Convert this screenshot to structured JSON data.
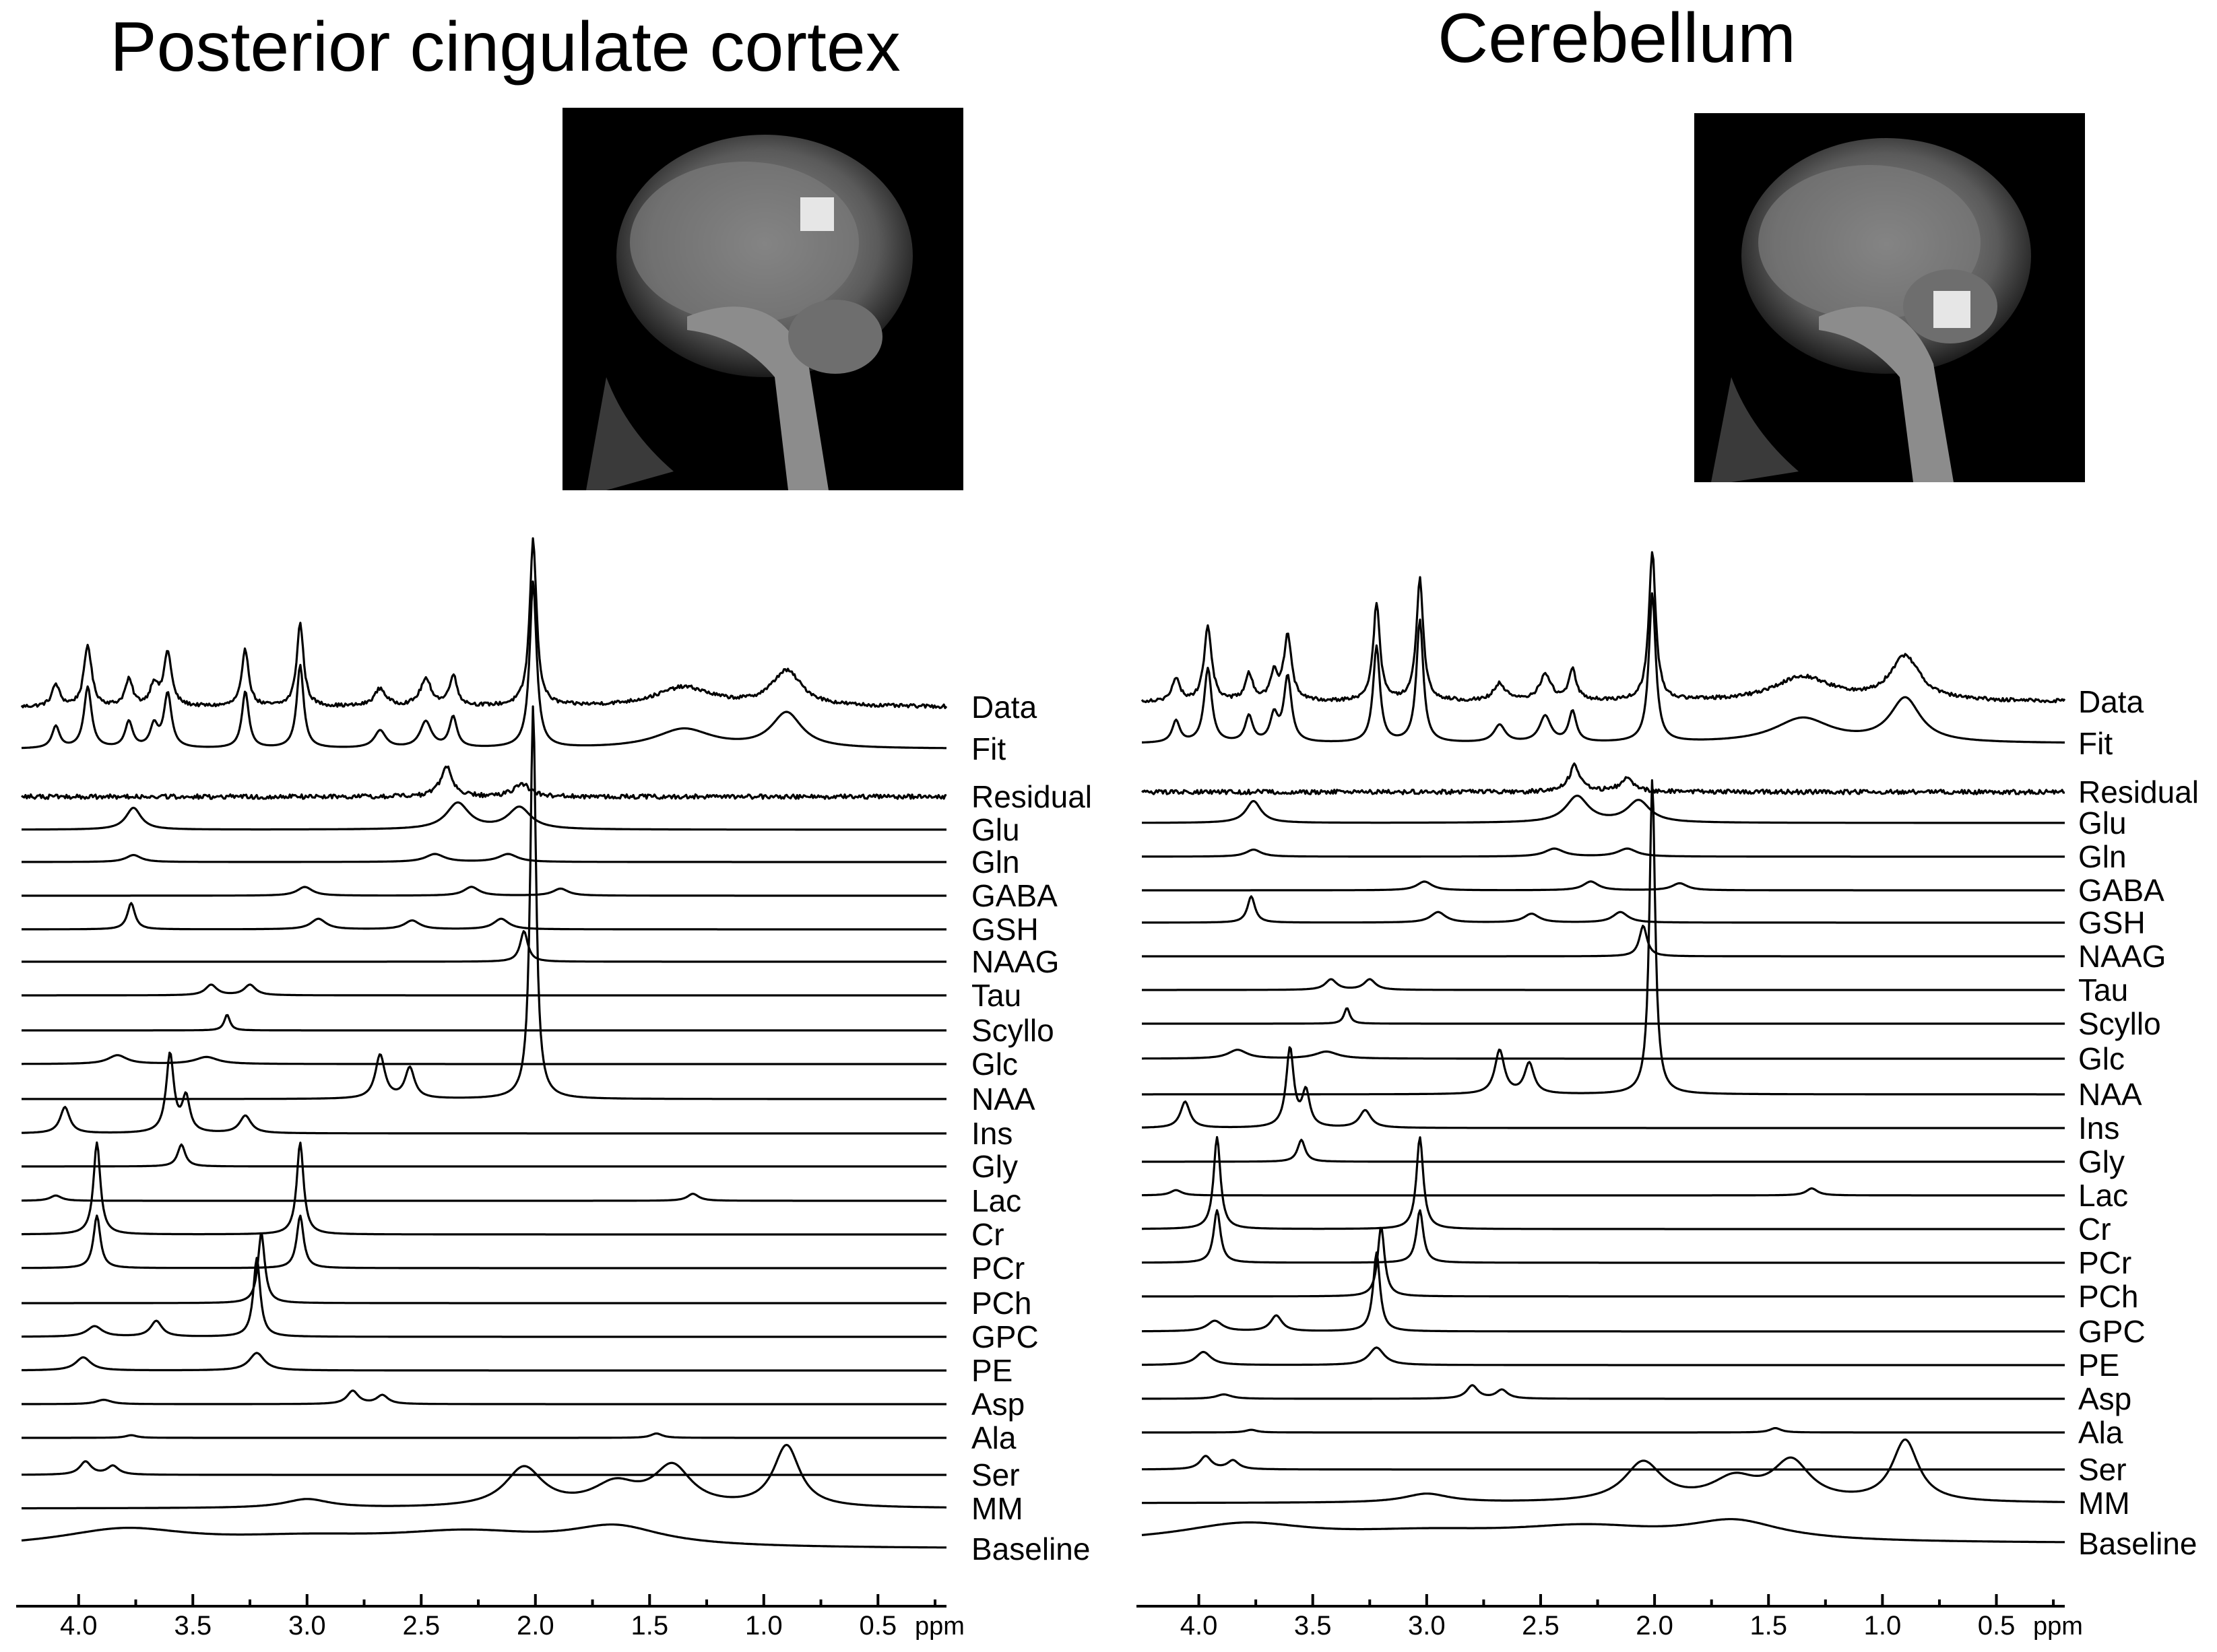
{
  "chart_data": [
    {
      "type": "line",
      "title": "Posterior cingulate cortex",
      "xlabel": "ppm",
      "x_axis": {
        "reversed": true,
        "range_ppm": [
          4.25,
          0.2
        ],
        "ticks": [
          "4.0",
          "3.5",
          "3.0",
          "2.5",
          "2.0",
          "1.5",
          "1.0",
          "0.5"
        ],
        "unit": "ppm"
      },
      "inset": "sagittal-mri-voxel-posterior-cingulate",
      "traces": [
        {
          "name": "Data",
          "peaks": [
            [
              4.1,
              0.25,
              0.02
            ],
            [
              3.96,
              0.7,
              0.02
            ],
            [
              3.78,
              0.3,
              0.02
            ],
            [
              3.67,
              0.25,
              0.02
            ],
            [
              3.61,
              0.62,
              0.02
            ],
            [
              3.27,
              0.65,
              0.018
            ],
            [
              3.03,
              0.95,
              0.018
            ],
            [
              2.68,
              0.2,
              0.03
            ],
            [
              2.48,
              0.3,
              0.03
            ],
            [
              2.36,
              0.35,
              0.02
            ],
            [
              2.01,
              1.9,
              0.018
            ],
            [
              1.35,
              0.22,
              0.15
            ],
            [
              0.9,
              0.4,
              0.08
            ]
          ],
          "noise": 0.04
        },
        {
          "name": "Fit",
          "peaks": [
            [
              4.1,
              0.25,
              0.02
            ],
            [
              3.96,
              0.7,
              0.02
            ],
            [
              3.78,
              0.3,
              0.02
            ],
            [
              3.67,
              0.25,
              0.02
            ],
            [
              3.61,
              0.62,
              0.02
            ],
            [
              3.27,
              0.65,
              0.018
            ],
            [
              3.03,
              0.95,
              0.018
            ],
            [
              2.68,
              0.2,
              0.03
            ],
            [
              2.48,
              0.3,
              0.03
            ],
            [
              2.36,
              0.35,
              0.02
            ],
            [
              2.01,
              1.9,
              0.018
            ],
            [
              1.35,
              0.22,
              0.15
            ],
            [
              0.9,
              0.4,
              0.08
            ]
          ],
          "noise": 0
        },
        {
          "name": "Residual",
          "peaks": [
            [
              2.39,
              0.35,
              0.03
            ],
            [
              2.06,
              0.15,
              0.04
            ]
          ],
          "noise": 0.05
        },
        {
          "name": "Glu",
          "peaks": [
            [
              3.76,
              0.25,
              0.04
            ],
            [
              2.34,
              0.3,
              0.06
            ],
            [
              2.07,
              0.25,
              0.06
            ]
          ]
        },
        {
          "name": "Gln",
          "peaks": [
            [
              3.76,
              0.08,
              0.04
            ],
            [
              2.44,
              0.09,
              0.05
            ],
            [
              2.12,
              0.09,
              0.05
            ]
          ]
        },
        {
          "name": "GABA",
          "peaks": [
            [
              3.01,
              0.1,
              0.04
            ],
            [
              2.28,
              0.1,
              0.04
            ],
            [
              1.89,
              0.08,
              0.04
            ]
          ]
        },
        {
          "name": "GSH",
          "peaks": [
            [
              3.77,
              0.3,
              0.02
            ],
            [
              2.95,
              0.12,
              0.04
            ],
            [
              2.54,
              0.1,
              0.04
            ],
            [
              2.15,
              0.12,
              0.04
            ]
          ]
        },
        {
          "name": "NAAG",
          "peaks": [
            [
              2.05,
              0.35,
              0.02
            ]
          ]
        },
        {
          "name": "Tau",
          "peaks": [
            [
              3.42,
              0.12,
              0.03
            ],
            [
              3.25,
              0.12,
              0.03
            ]
          ]
        },
        {
          "name": "Scyllo",
          "peaks": [
            [
              3.35,
              0.18,
              0.015
            ]
          ]
        },
        {
          "name": "Glc",
          "peaks": [
            [
              3.83,
              0.1,
              0.05
            ],
            [
              3.44,
              0.08,
              0.06
            ]
          ]
        },
        {
          "name": "NAA",
          "peaks": [
            [
              2.01,
              4.5,
              0.015
            ],
            [
              2.68,
              0.5,
              0.025
            ],
            [
              2.55,
              0.35,
              0.025
            ]
          ]
        },
        {
          "name": "Ins",
          "peaks": [
            [
              4.06,
              0.3,
              0.025
            ],
            [
              3.6,
              0.9,
              0.02
            ],
            [
              3.53,
              0.4,
              0.02
            ],
            [
              3.27,
              0.2,
              0.03
            ]
          ]
        },
        {
          "name": "Gly",
          "peaks": [
            [
              3.55,
              0.25,
              0.02
            ]
          ]
        },
        {
          "name": "Lac",
          "peaks": [
            [
              4.1,
              0.06,
              0.03
            ],
            [
              1.31,
              0.08,
              0.03
            ]
          ]
        },
        {
          "name": "Cr",
          "peaks": [
            [
              3.92,
              1.05,
              0.018
            ],
            [
              3.03,
              1.05,
              0.018
            ]
          ]
        },
        {
          "name": "PCr",
          "peaks": [
            [
              3.92,
              0.6,
              0.018
            ],
            [
              3.03,
              0.6,
              0.018
            ]
          ]
        },
        {
          "name": "PCh",
          "peaks": [
            [
              3.2,
              0.8,
              0.018
            ]
          ]
        },
        {
          "name": "GPC",
          "peaks": [
            [
              3.93,
              0.12,
              0.04
            ],
            [
              3.66,
              0.18,
              0.03
            ],
            [
              3.22,
              0.9,
              0.018
            ]
          ]
        },
        {
          "name": "PE",
          "peaks": [
            [
              3.98,
              0.15,
              0.04
            ],
            [
              3.22,
              0.2,
              0.04
            ]
          ]
        },
        {
          "name": "Asp",
          "peaks": [
            [
              3.89,
              0.05,
              0.04
            ],
            [
              2.8,
              0.15,
              0.03
            ],
            [
              2.67,
              0.1,
              0.03
            ]
          ]
        },
        {
          "name": "Ala",
          "peaks": [
            [
              3.77,
              0.03,
              0.03
            ],
            [
              1.47,
              0.05,
              0.03
            ]
          ]
        },
        {
          "name": "Ser",
          "peaks": [
            [
              3.97,
              0.15,
              0.03
            ],
            [
              3.85,
              0.1,
              0.03
            ]
          ]
        },
        {
          "name": "MM",
          "peaks": [
            [
              3.0,
              0.1,
              0.12
            ],
            [
              2.05,
              0.45,
              0.1
            ],
            [
              1.4,
              0.45,
              0.1
            ],
            [
              0.9,
              0.7,
              0.07
            ],
            [
              1.65,
              0.25,
              0.12
            ]
          ]
        },
        {
          "name": "Baseline",
          "peaks": [
            [
              3.8,
              0.2,
              0.35
            ],
            [
              3.0,
              0.1,
              0.5
            ],
            [
              2.3,
              0.15,
              0.4
            ],
            [
              1.65,
              0.22,
              0.25
            ]
          ]
        }
      ]
    },
    {
      "type": "line",
      "title": "Cerebellum",
      "xlabel": "ppm",
      "x_axis": {
        "reversed": true,
        "range_ppm": [
          4.25,
          0.2
        ],
        "ticks": [
          "4.0",
          "3.5",
          "3.0",
          "2.5",
          "2.0",
          "1.5",
          "1.0",
          "0.5"
        ],
        "unit": "ppm"
      },
      "inset": "sagittal-mri-voxel-cerebellum",
      "traces": [
        {
          "name": "Data",
          "peaks": [
            [
              4.1,
              0.25,
              0.02
            ],
            [
              3.96,
              0.85,
              0.02
            ],
            [
              3.78,
              0.3,
              0.02
            ],
            [
              3.67,
              0.3,
              0.02
            ],
            [
              3.61,
              0.75,
              0.02
            ],
            [
              3.22,
              1.1,
              0.018
            ],
            [
              3.03,
              1.4,
              0.018
            ],
            [
              2.68,
              0.2,
              0.03
            ],
            [
              2.48,
              0.3,
              0.03
            ],
            [
              2.36,
              0.35,
              0.02
            ],
            [
              2.01,
              1.7,
              0.018
            ],
            [
              1.35,
              0.28,
              0.15
            ],
            [
              0.9,
              0.5,
              0.08
            ]
          ],
          "noise": 0.04
        },
        {
          "name": "Fit",
          "peaks": [
            [
              4.1,
              0.25,
              0.02
            ],
            [
              3.96,
              0.85,
              0.02
            ],
            [
              3.78,
              0.3,
              0.02
            ],
            [
              3.67,
              0.3,
              0.02
            ],
            [
              3.61,
              0.75,
              0.02
            ],
            [
              3.22,
              1.1,
              0.018
            ],
            [
              3.03,
              1.4,
              0.018
            ],
            [
              2.68,
              0.2,
              0.03
            ],
            [
              2.48,
              0.3,
              0.03
            ],
            [
              2.36,
              0.35,
              0.02
            ],
            [
              2.01,
              1.7,
              0.018
            ],
            [
              1.35,
              0.28,
              0.15
            ],
            [
              0.9,
              0.5,
              0.08
            ]
          ],
          "noise": 0
        },
        {
          "name": "Residual",
          "peaks": [
            [
              2.35,
              0.3,
              0.03
            ],
            [
              2.12,
              0.15,
              0.04
            ]
          ],
          "noise": 0.05
        },
        {
          "name": "Glu",
          "peaks": [
            [
              3.76,
              0.25,
              0.04
            ],
            [
              2.34,
              0.3,
              0.06
            ],
            [
              2.07,
              0.25,
              0.06
            ]
          ]
        },
        {
          "name": "Gln",
          "peaks": [
            [
              3.76,
              0.08,
              0.04
            ],
            [
              2.44,
              0.09,
              0.05
            ],
            [
              2.12,
              0.09,
              0.05
            ]
          ]
        },
        {
          "name": "GABA",
          "peaks": [
            [
              3.01,
              0.1,
              0.04
            ],
            [
              2.28,
              0.1,
              0.04
            ],
            [
              1.89,
              0.08,
              0.04
            ]
          ]
        },
        {
          "name": "GSH",
          "peaks": [
            [
              3.77,
              0.3,
              0.02
            ],
            [
              2.95,
              0.12,
              0.04
            ],
            [
              2.54,
              0.1,
              0.04
            ],
            [
              2.15,
              0.12,
              0.04
            ]
          ]
        },
        {
          "name": "NAAG",
          "peaks": [
            [
              2.05,
              0.35,
              0.02
            ]
          ]
        },
        {
          "name": "Tau",
          "peaks": [
            [
              3.42,
              0.12,
              0.03
            ],
            [
              3.25,
              0.12,
              0.03
            ]
          ]
        },
        {
          "name": "Scyllo",
          "peaks": [
            [
              3.35,
              0.18,
              0.015
            ]
          ]
        },
        {
          "name": "Glc",
          "peaks": [
            [
              3.83,
              0.1,
              0.05
            ],
            [
              3.44,
              0.08,
              0.06
            ]
          ]
        },
        {
          "name": "NAA",
          "peaks": [
            [
              2.01,
              3.6,
              0.015
            ],
            [
              2.68,
              0.5,
              0.025
            ],
            [
              2.55,
              0.35,
              0.025
            ]
          ]
        },
        {
          "name": "Ins",
          "peaks": [
            [
              4.06,
              0.3,
              0.025
            ],
            [
              3.6,
              0.9,
              0.02
            ],
            [
              3.53,
              0.4,
              0.02
            ],
            [
              3.27,
              0.2,
              0.03
            ]
          ]
        },
        {
          "name": "Gly",
          "peaks": [
            [
              3.55,
              0.25,
              0.02
            ]
          ]
        },
        {
          "name": "Lac",
          "peaks": [
            [
              4.1,
              0.06,
              0.03
            ],
            [
              1.31,
              0.08,
              0.03
            ]
          ]
        },
        {
          "name": "Cr",
          "peaks": [
            [
              3.92,
              1.05,
              0.018
            ],
            [
              3.03,
              1.05,
              0.018
            ]
          ]
        },
        {
          "name": "PCr",
          "peaks": [
            [
              3.92,
              0.6,
              0.018
            ],
            [
              3.03,
              0.6,
              0.018
            ]
          ]
        },
        {
          "name": "PCh",
          "peaks": [
            [
              3.2,
              0.8,
              0.018
            ]
          ]
        },
        {
          "name": "GPC",
          "peaks": [
            [
              3.93,
              0.12,
              0.04
            ],
            [
              3.66,
              0.18,
              0.03
            ],
            [
              3.22,
              0.9,
              0.018
            ]
          ]
        },
        {
          "name": "PE",
          "peaks": [
            [
              3.98,
              0.15,
              0.04
            ],
            [
              3.22,
              0.2,
              0.04
            ]
          ]
        },
        {
          "name": "Asp",
          "peaks": [
            [
              3.89,
              0.05,
              0.04
            ],
            [
              2.8,
              0.15,
              0.03
            ],
            [
              2.67,
              0.1,
              0.03
            ]
          ]
        },
        {
          "name": "Ala",
          "peaks": [
            [
              3.77,
              0.03,
              0.03
            ],
            [
              1.47,
              0.05,
              0.03
            ]
          ]
        },
        {
          "name": "Ser",
          "peaks": [
            [
              3.97,
              0.15,
              0.03
            ],
            [
              3.85,
              0.1,
              0.03
            ]
          ]
        },
        {
          "name": "MM",
          "peaks": [
            [
              3.0,
              0.1,
              0.12
            ],
            [
              2.05,
              0.45,
              0.1
            ],
            [
              1.4,
              0.45,
              0.1
            ],
            [
              0.9,
              0.7,
              0.07
            ],
            [
              1.65,
              0.25,
              0.12
            ]
          ]
        },
        {
          "name": "Baseline",
          "peaks": [
            [
              3.8,
              0.2,
              0.35
            ],
            [
              3.0,
              0.1,
              0.5
            ],
            [
              2.3,
              0.15,
              0.4
            ],
            [
              1.65,
              0.22,
              0.25
            ]
          ]
        }
      ]
    }
  ]
}
